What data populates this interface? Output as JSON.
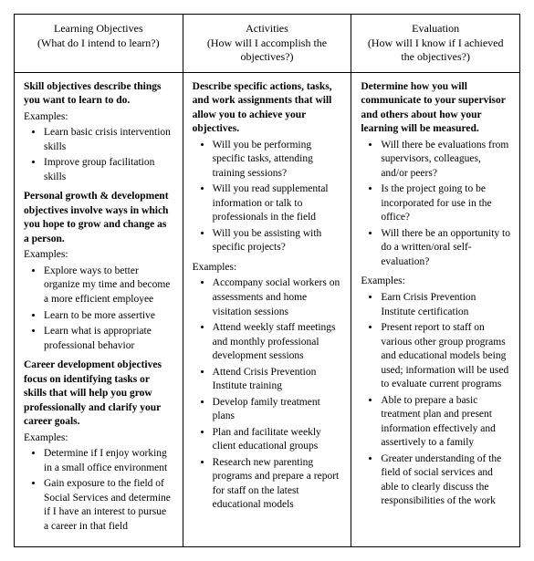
{
  "table": {
    "headers": [
      {
        "title": "Learning Objectives",
        "sub": "(What do I intend to learn?)"
      },
      {
        "title": "Activities",
        "sub": "(How will I accomplish the objectives?)"
      },
      {
        "title": "Evaluation",
        "sub": "(How will I know if I achieved the objectives?)"
      }
    ],
    "col1": {
      "p1": "Skill objectives describe things you want to learn to do.",
      "ex_label1": "Examples:",
      "b1": [
        "Learn basic crisis intervention skills",
        "Improve group facilitation skills"
      ],
      "p2": "Personal growth & development objectives involve ways in which you hope to grow and change as a person.",
      "ex_label2": "Examples:",
      "b2": [
        "Explore ways to better organize my time and become a more efficient employee",
        "Learn to be more assertive",
        "Learn what is appropriate professional behavior"
      ],
      "p3": "Career development objectives focus on identifying tasks or skills that will help you grow professionally and clarify your career goals.",
      "ex_label3": "Examples:",
      "b3": [
        "Determine if I enjoy working in a small office environment",
        "Gain exposure to the field of Social Services and determine if I have an interest to pursue a career in that field"
      ]
    },
    "col2": {
      "p1": "Describe specific actions, tasks, and work assignments that will allow you to achieve your objectives.",
      "b1": [
        "Will you be performing specific tasks, attending training sessions?",
        "Will you read supplemental information or talk to professionals in the field",
        "Will you be assisting with specific projects?"
      ],
      "ex_label1": "Examples:",
      "b2": [
        "Accompany social workers on assessments and home visitation sessions",
        "Attend weekly staff meetings and monthly professional development sessions",
        "Attend Crisis Prevention Institute training",
        "Develop family treatment plans",
        "Plan and facilitate weekly client educational groups",
        "Research new parenting programs and prepare a report for staff on the latest educational models"
      ]
    },
    "col3": {
      "p1": "Determine how you will communicate to your supervisor and others about how your learning will be measured.",
      "b1": [
        "Will there be evaluations from supervisors, colleagues, and/or peers?",
        "Is the project going to be incorporated for use in the office?",
        "Will there be an opportunity to do a written/oral self-evaluation?"
      ],
      "ex_label1": "Examples:",
      "b2": [
        "Earn Crisis Prevention Institute certification",
        "Present report to staff on various other group programs and educational models being used; information will be used to evaluate current programs",
        "Able to prepare a basic treatment plan and present information effectively and assertively to a family",
        "Greater understanding of the field of social services and able to clearly discuss the responsibilities of the work"
      ]
    }
  }
}
